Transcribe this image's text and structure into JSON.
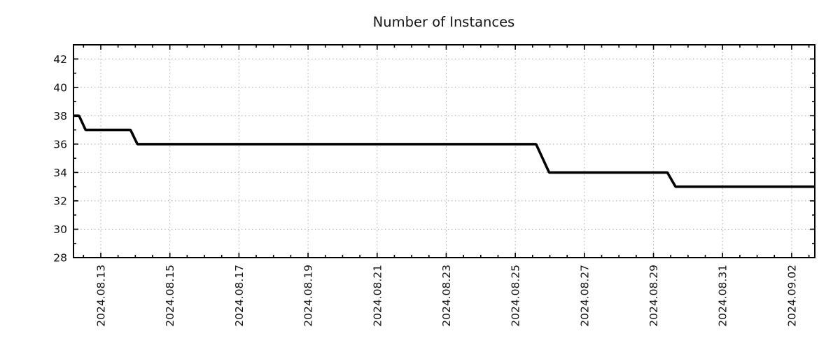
{
  "title": "Number of Instances",
  "chart_data": {
    "type": "line",
    "subtype": "step",
    "title": "Number of Instances",
    "x_unit": "days since 2024-08-12 00:00",
    "points": [
      [
        0.21,
        38
      ],
      [
        0.37,
        38
      ],
      [
        0.56,
        37
      ],
      [
        1.86,
        37
      ],
      [
        2.06,
        36
      ],
      [
        13.6,
        36
      ],
      [
        13.98,
        34
      ],
      [
        17.4,
        34
      ],
      [
        17.64,
        33
      ],
      [
        21.67,
        33
      ]
    ],
    "steps_readable": [
      {
        "value": 38,
        "approx_from": "2024-08-12 05:00",
        "approx_to": "2024-08-12 09:00"
      },
      {
        "value": 37,
        "approx_from": "2024-08-12 13:00",
        "approx_to": "2024-08-13 21:00"
      },
      {
        "value": 36,
        "approx_from": "2024-08-14 01:00",
        "approx_to": "2024-08-25 14:00"
      },
      {
        "value": 34,
        "approx_from": "2024-08-26 00:00",
        "approx_to": "2024-08-29 10:00"
      },
      {
        "value": 33,
        "approx_from": "2024-08-29 15:00",
        "approx_to": "2024-09-02 16:00"
      }
    ],
    "xlim": [
      0.21,
      21.67
    ],
    "ylim": [
      28,
      43
    ],
    "x_ticks": [
      {
        "offset": 1,
        "label": "2024.08.13"
      },
      {
        "offset": 3,
        "label": "2024.08.15"
      },
      {
        "offset": 5,
        "label": "2024.08.17"
      },
      {
        "offset": 7,
        "label": "2024.08.19"
      },
      {
        "offset": 9,
        "label": "2024.08.21"
      },
      {
        "offset": 11,
        "label": "2024.08.23"
      },
      {
        "offset": 13,
        "label": "2024.08.25"
      },
      {
        "offset": 15,
        "label": "2024.08.27"
      },
      {
        "offset": 17,
        "label": "2024.08.29"
      },
      {
        "offset": 19,
        "label": "2024.08.31"
      },
      {
        "offset": 21,
        "label": "2024.09.02"
      }
    ],
    "y_ticks": [
      28,
      30,
      32,
      34,
      36,
      38,
      40,
      42
    ],
    "x_minor_step": 0.5,
    "y_minor_step": 1,
    "grid": "dotted lines at major ticks, both axes",
    "legend": "none",
    "line_color": "#000000",
    "grid_color": "#a8a8a8",
    "frame_color": "#000000",
    "text_color": "#141414",
    "background": "#ffffff"
  }
}
